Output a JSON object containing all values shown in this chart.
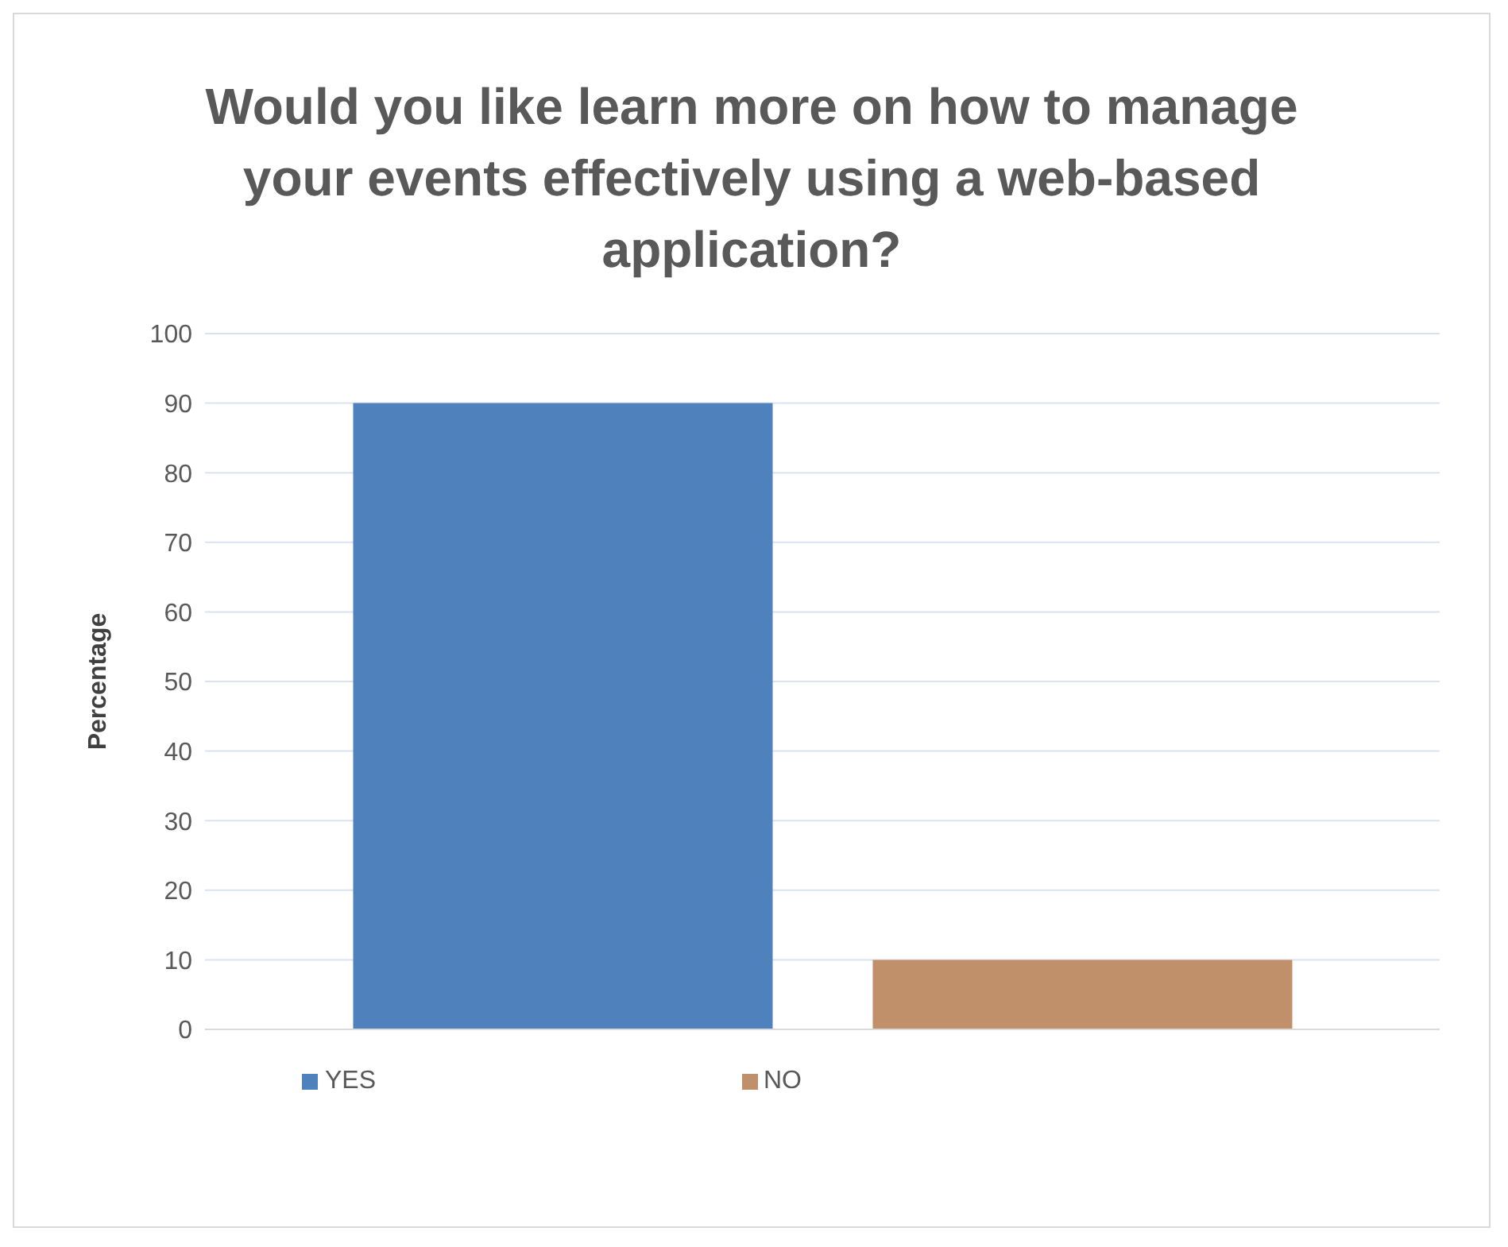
{
  "chart_data": {
    "type": "bar",
    "title": "Would you like learn more on how to manage your events effectively using a web-based application?",
    "ylabel": "Percentage",
    "categories": [
      null
    ],
    "series": [
      {
        "name": "YES",
        "color": "#4f81bd",
        "values": [
          90
        ]
      },
      {
        "name": "NO",
        "color": "#c0906b",
        "values": [
          10
        ]
      }
    ],
    "ylim": [
      0,
      100
    ],
    "yticks": [
      0,
      10,
      20,
      30,
      40,
      50,
      60,
      70,
      80,
      90,
      100
    ],
    "grid": "y",
    "legend": "bottom"
  }
}
